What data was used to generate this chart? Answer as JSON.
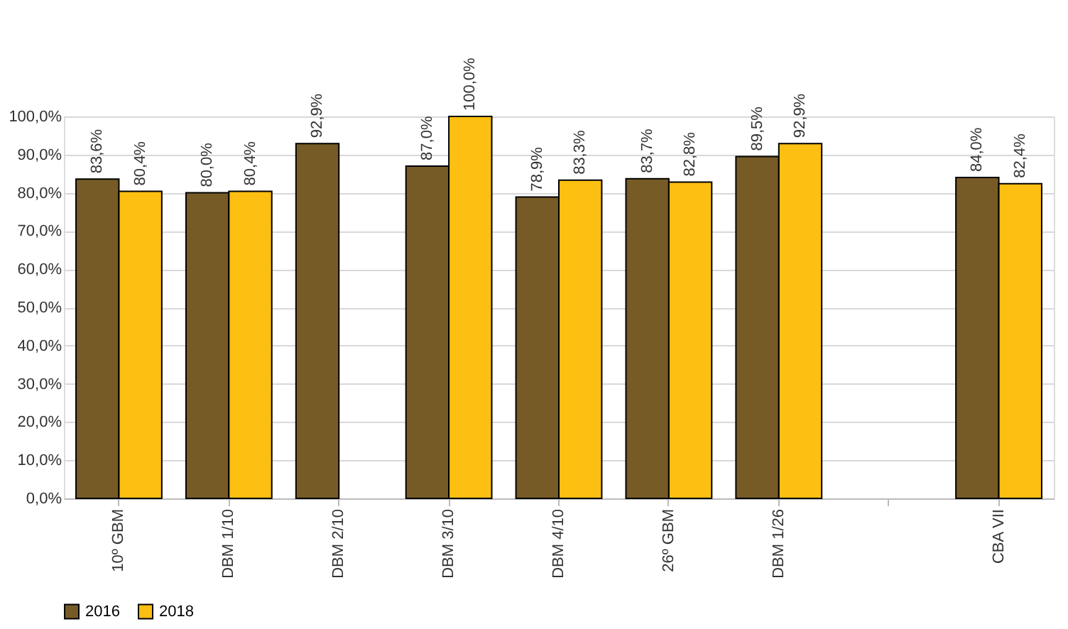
{
  "chart_data": {
    "type": "bar",
    "categories": [
      "10º GBM",
      "DBM 1/10",
      "DBM 2/10",
      "DBM 3/10",
      "DBM 4/10",
      "26º GBM",
      "DBM 1/26",
      null,
      "CBA VII"
    ],
    "series": [
      {
        "name": "2016",
        "color": "#775b26",
        "values": [
          83.6,
          80.0,
          92.9,
          87.0,
          78.9,
          83.7,
          89.5,
          null,
          84.0
        ],
        "value_labels": [
          "83,6%",
          "80,0%",
          "92,9%",
          "87,0%",
          "78,9%",
          "83,7%",
          "89,5%",
          null,
          "84,0%"
        ]
      },
      {
        "name": "2018",
        "color": "#fcbf12",
        "values": [
          80.4,
          80.4,
          null,
          100.0,
          83.3,
          82.8,
          92.9,
          null,
          82.4
        ],
        "value_labels": [
          "80,4%",
          "80,4%",
          null,
          "100,0%",
          "83,3%",
          "82,8%",
          "92,9%",
          null,
          "82,4%"
        ]
      }
    ],
    "ylim": [
      0,
      100
    ],
    "yticks": [
      {
        "value": 0,
        "label": "0,0%"
      },
      {
        "value": 10,
        "label": "10,0%"
      },
      {
        "value": 20,
        "label": "20,0%"
      },
      {
        "value": 30,
        "label": "30,0%"
      },
      {
        "value": 40,
        "label": "40,0%"
      },
      {
        "value": 50,
        "label": "50,0%"
      },
      {
        "value": 60,
        "label": "60,0%"
      },
      {
        "value": 70,
        "label": "70,0%"
      },
      {
        "value": 80,
        "label": "80,0%"
      },
      {
        "value": 90,
        "label": "90,0%"
      },
      {
        "value": 100,
        "label": "100,0%"
      }
    ],
    "grid": "y",
    "legend": "bottom"
  }
}
